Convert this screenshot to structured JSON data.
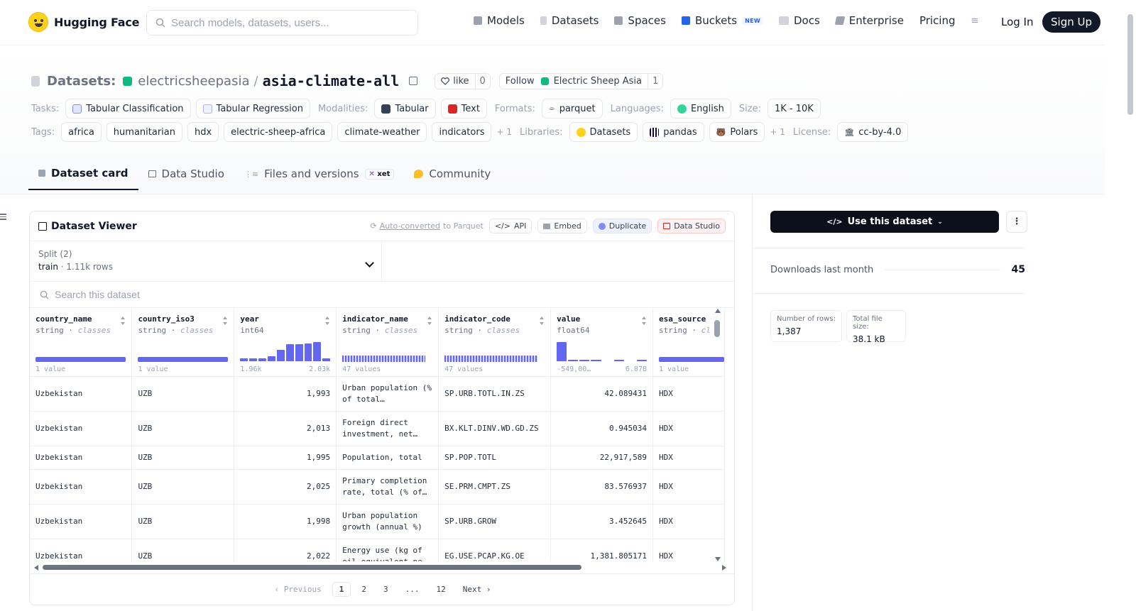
{
  "nav": {
    "logo_text": "Hugging Face",
    "search_placeholder": "Search models, datasets, users...",
    "items": [
      {
        "label": "Models",
        "icon": "cube-icon",
        "color": "#9ca3af"
      },
      {
        "label": "Datasets",
        "icon": "database-icon",
        "color": "#9ca3af"
      },
      {
        "label": "Spaces",
        "icon": "grid-icon",
        "color": "#9ca3af"
      },
      {
        "label": "Buckets",
        "icon": "bucket-icon",
        "color": "#2563eb",
        "badge": "NEW"
      },
      {
        "label": "Docs",
        "icon": "book-icon",
        "color": "#9ca3af"
      },
      {
        "label": "Enterprise",
        "icon": "enterprise-icon",
        "color": "#9ca3af"
      },
      {
        "label": "Pricing"
      }
    ],
    "more_icon": "≡",
    "login": "Log In",
    "signup": "Sign Up"
  },
  "header": {
    "title_label": "Datasets:",
    "org": "electricsheepasia",
    "repo": "asia-climate-all",
    "like_label": "like",
    "like_count": "0",
    "follow_label": "Follow",
    "follow_org": "Electric Sheep Asia",
    "follow_count": "1",
    "tasks_label": "Tasks:",
    "tasks": [
      "Tabular Classification",
      "Tabular Regression"
    ],
    "modalities_label": "Modalities:",
    "modalities": [
      "Tabular",
      "Text"
    ],
    "formats_label": "Formats:",
    "formats": [
      "parquet"
    ],
    "languages_label": "Languages:",
    "languages": [
      "English"
    ],
    "size_label": "Size:",
    "size": "1K - 10K",
    "tags_label": "Tags:",
    "tags": [
      "africa",
      "humanitarian",
      "hdx",
      "electric-sheep-africa",
      "climate-weather",
      "indicators"
    ],
    "tags_more": "+ 1",
    "libraries_label": "Libraries:",
    "libraries": [
      "Datasets",
      "pandas",
      "Polars"
    ],
    "libraries_more": "+ 1",
    "license_label": "License:",
    "license": "cc-by-4.0"
  },
  "tabs": [
    {
      "label": "Dataset card",
      "active": true
    },
    {
      "label": "Data Studio"
    },
    {
      "label": "Files and versions",
      "badge": "xet"
    },
    {
      "label": "Community"
    }
  ],
  "viewer": {
    "title": "Dataset Viewer",
    "auto_converted": "Auto-converted",
    "to_parquet": "to Parquet",
    "api": "API",
    "embed": "Embed",
    "duplicate": "Duplicate",
    "data_studio": "Data Studio",
    "split_label": "Split (2)",
    "split_value": "train",
    "split_rows": "1.11k rows",
    "search_placeholder": "Search this dataset",
    "columns": [
      {
        "name": "country_name",
        "type": "string",
        "kind": "classes",
        "foot_left": "1 value",
        "foot_right": ""
      },
      {
        "name": "country_iso3",
        "type": "string",
        "kind": "classes",
        "foot_left": "1 value",
        "foot_right": ""
      },
      {
        "name": "year",
        "type": "int64",
        "kind": "",
        "foot_left": "1.96k",
        "foot_right": "2.03k"
      },
      {
        "name": "indicator_name",
        "type": "string",
        "kind": "classes",
        "foot_left": "47 values",
        "foot_right": ""
      },
      {
        "name": "indicator_code",
        "type": "string",
        "kind": "classes",
        "foot_left": "47 values",
        "foot_right": ""
      },
      {
        "name": "value",
        "type": "float64",
        "kind": "",
        "foot_left": "-549,00…",
        "foot_right": "6.87B"
      },
      {
        "name": "esa_source",
        "type": "string",
        "kind": "cl",
        "foot_left": "1 value",
        "foot_right": ""
      }
    ],
    "year_hist": [
      0.15,
      0.15,
      0.15,
      0.25,
      0.55,
      0.8,
      0.8,
      0.85,
      0.9,
      0.15
    ],
    "value_hist": [
      0.9,
      0.05,
      0.05,
      0.05,
      0,
      0.05,
      0,
      0.05
    ],
    "rows": [
      [
        "Uzbekistan",
        "UZB",
        "1,993",
        "Urban population (% of total…",
        "SP.URB.TOTL.IN.ZS",
        "42.089431",
        "HDX"
      ],
      [
        "Uzbekistan",
        "UZB",
        "2,013",
        "Foreign direct investment, net…",
        "BX.KLT.DINV.WD.GD.ZS",
        "0.945034",
        "HDX"
      ],
      [
        "Uzbekistan",
        "UZB",
        "1,995",
        "Population, total",
        "SP.POP.TOTL",
        "22,917,589",
        "HDX"
      ],
      [
        "Uzbekistan",
        "UZB",
        "2,025",
        "Primary completion rate, total (% of…",
        "SE.PRM.CMPT.ZS",
        "83.576937",
        "HDX"
      ],
      [
        "Uzbekistan",
        "UZB",
        "1,998",
        "Urban population growth (annual %)",
        "SP.URB.GROW",
        "3.452645",
        "HDX"
      ],
      [
        "Uzbekistan",
        "UZB",
        "2,022",
        "Energy use (kg of oil equivalent pe…",
        "EG.USE.PCAP.KG.OE",
        "1,381.805171",
        "HDX"
      ]
    ],
    "pager": {
      "prev": "‹ Previous",
      "pages": [
        "1",
        "2",
        "3",
        "...",
        "12"
      ],
      "current": "1",
      "next": "Next ›"
    }
  },
  "sidebar": {
    "use_button": "Use this dataset",
    "kebab": "⋮",
    "downloads_label": "Downloads last month",
    "downloads_value": "45",
    "rows_label": "Number of rows:",
    "rows_value": "1,387",
    "size_label": "Total file size:",
    "size_value": "38.1 kB"
  },
  "colors": {
    "accent": "#6366f1",
    "dark": "#0b0f19",
    "green": "#10b981"
  }
}
